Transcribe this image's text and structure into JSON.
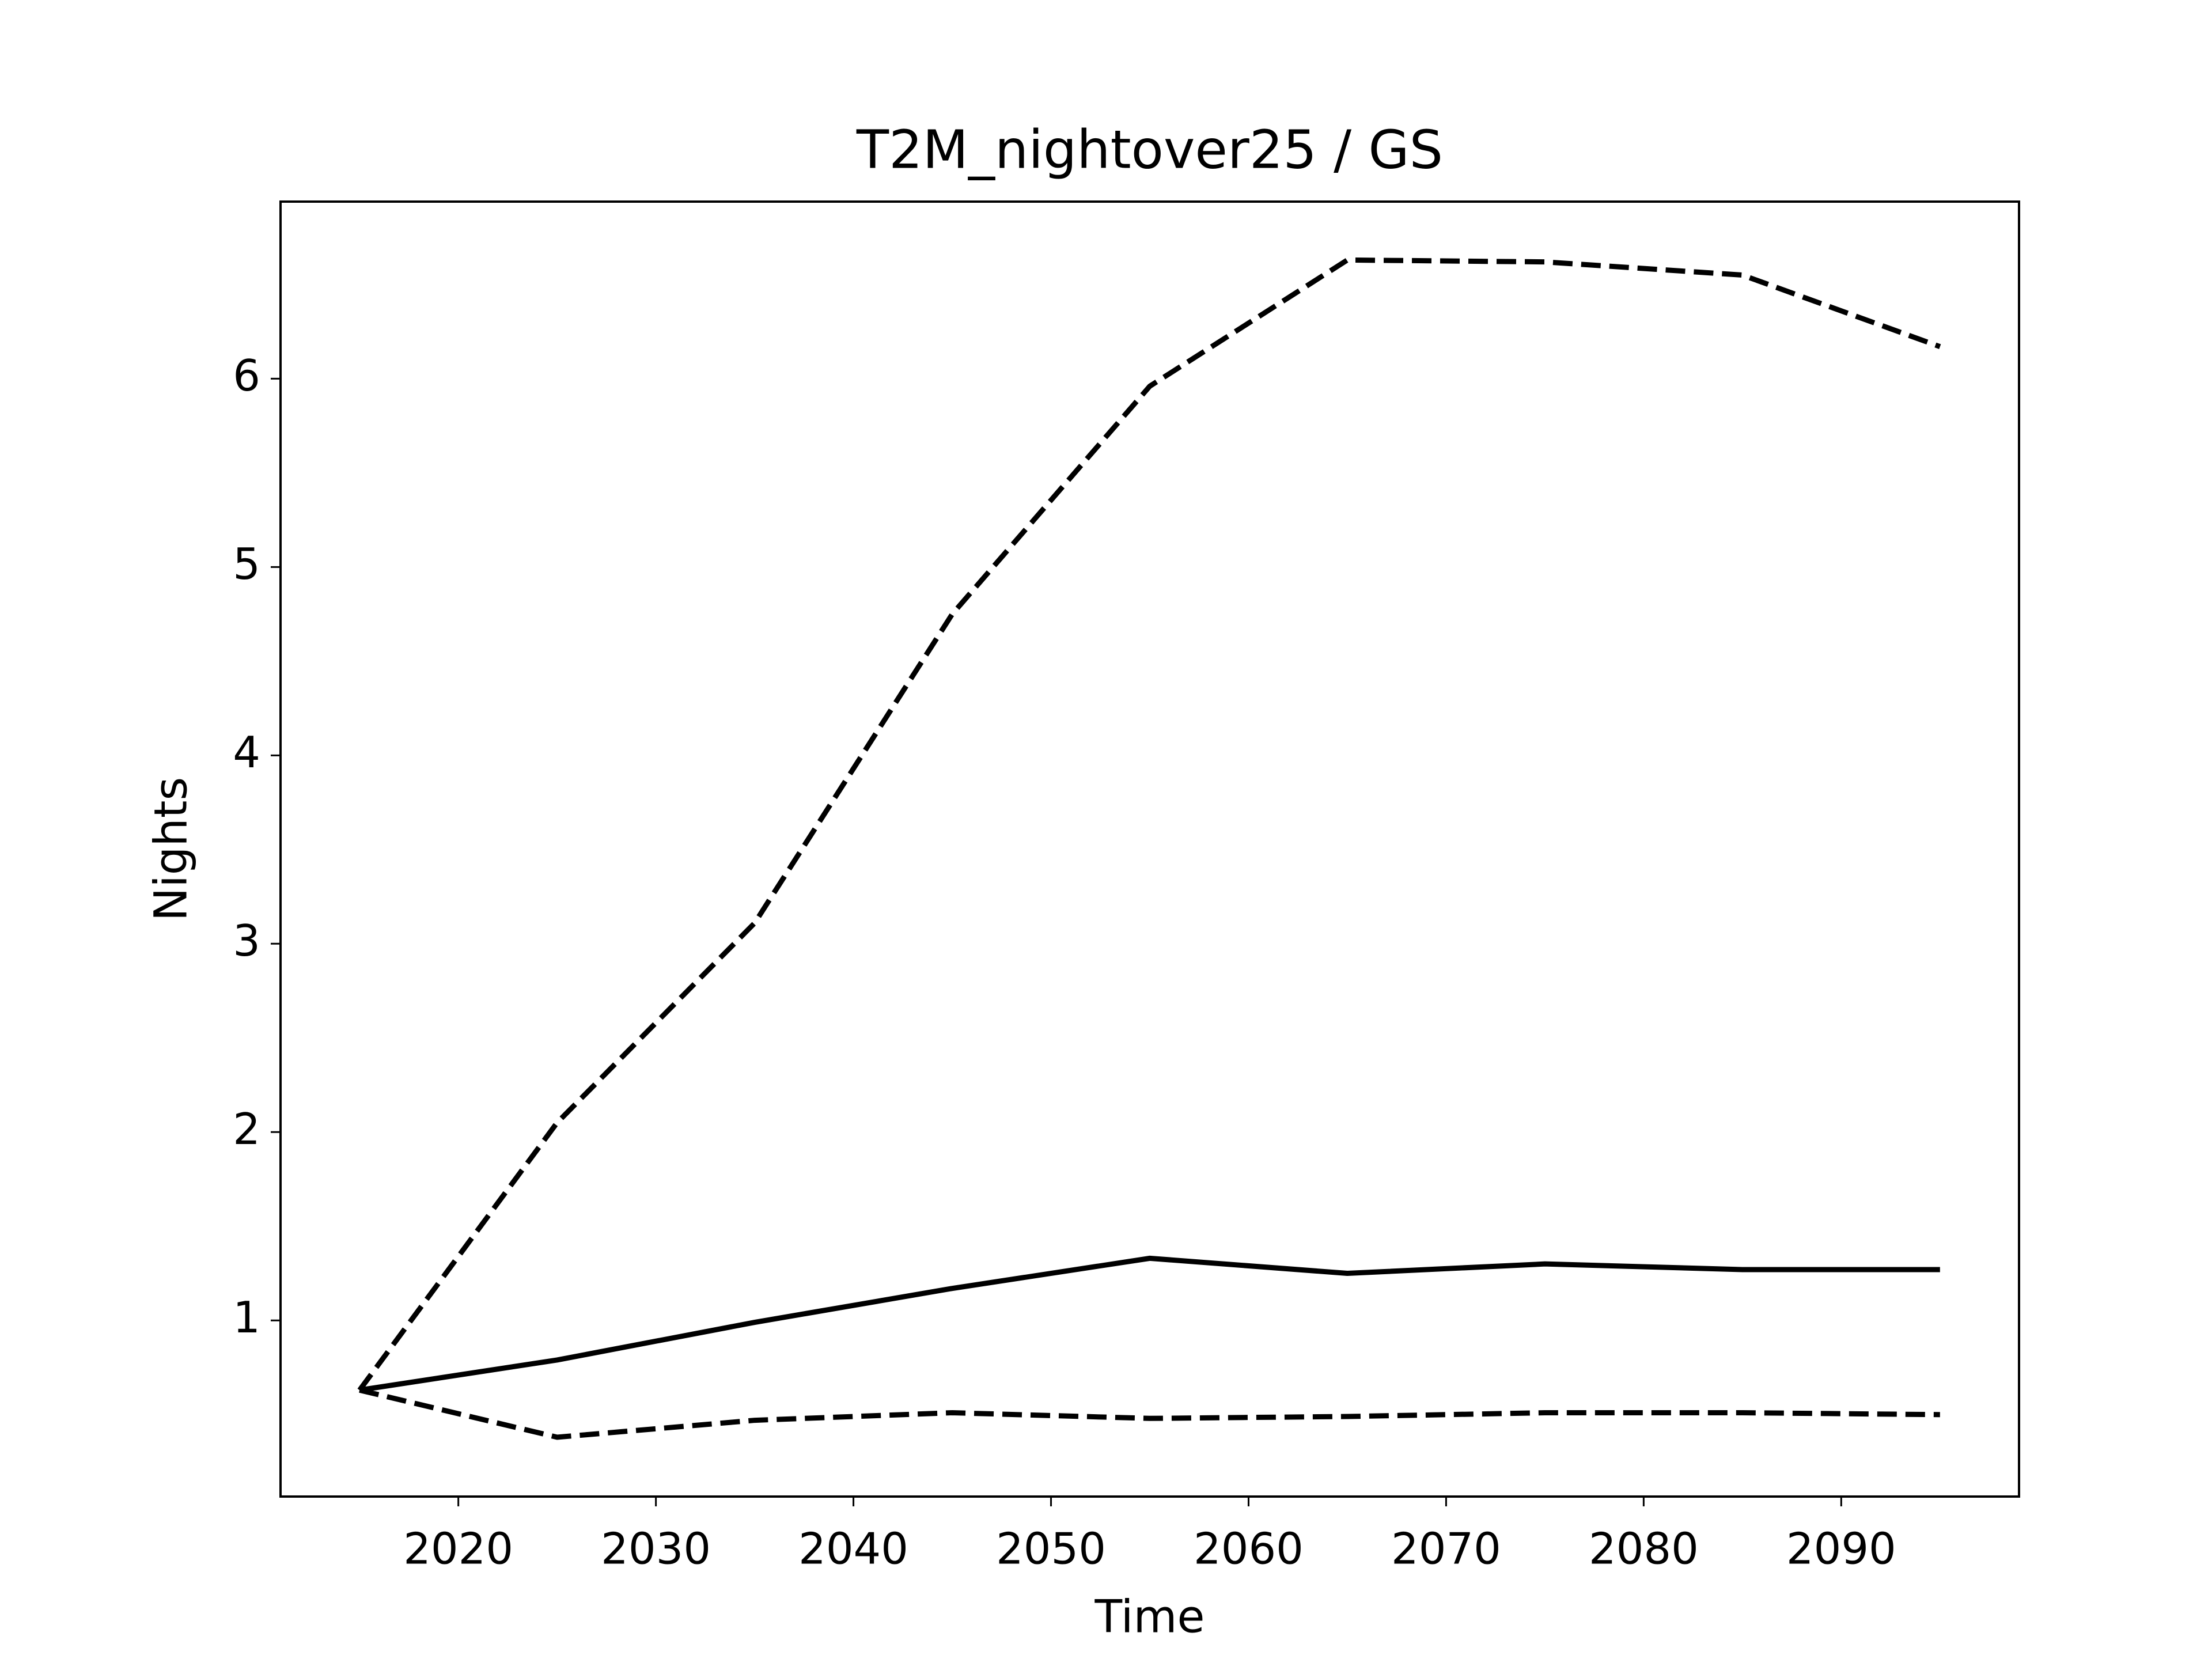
{
  "chart_data": {
    "type": "line",
    "title": "T2M_nightover25 / GS",
    "xlabel": "Time",
    "ylabel": "Nights",
    "x": [
      2015,
      2025,
      2035,
      2045,
      2055,
      2065,
      2075,
      2085,
      2095
    ],
    "series": [
      {
        "color": "#000000",
        "dashed": false,
        "values": [
          0.63,
          0.79,
          0.99,
          1.17,
          1.33,
          1.25,
          1.3,
          1.27,
          1.27
        ]
      },
      {
        "color": "#000000",
        "dashed": true,
        "values": [
          0.63,
          2.05,
          3.11,
          4.75,
          5.96,
          6.63,
          6.62,
          6.55,
          6.17
        ]
      },
      {
        "color": "#000000",
        "dashed": true,
        "values": [
          0.63,
          0.38,
          0.47,
          0.51,
          0.48,
          0.49,
          0.51,
          0.51,
          0.5
        ]
      }
    ],
    "xlim": [
      2011,
      2099
    ],
    "xticks": [
      2020,
      2030,
      2040,
      2050,
      2060,
      2070,
      2080,
      2090
    ],
    "ylim": [
      0.065,
      6.94
    ],
    "yticks": [
      1,
      2,
      3,
      4,
      5,
      6
    ],
    "grid": false
  }
}
